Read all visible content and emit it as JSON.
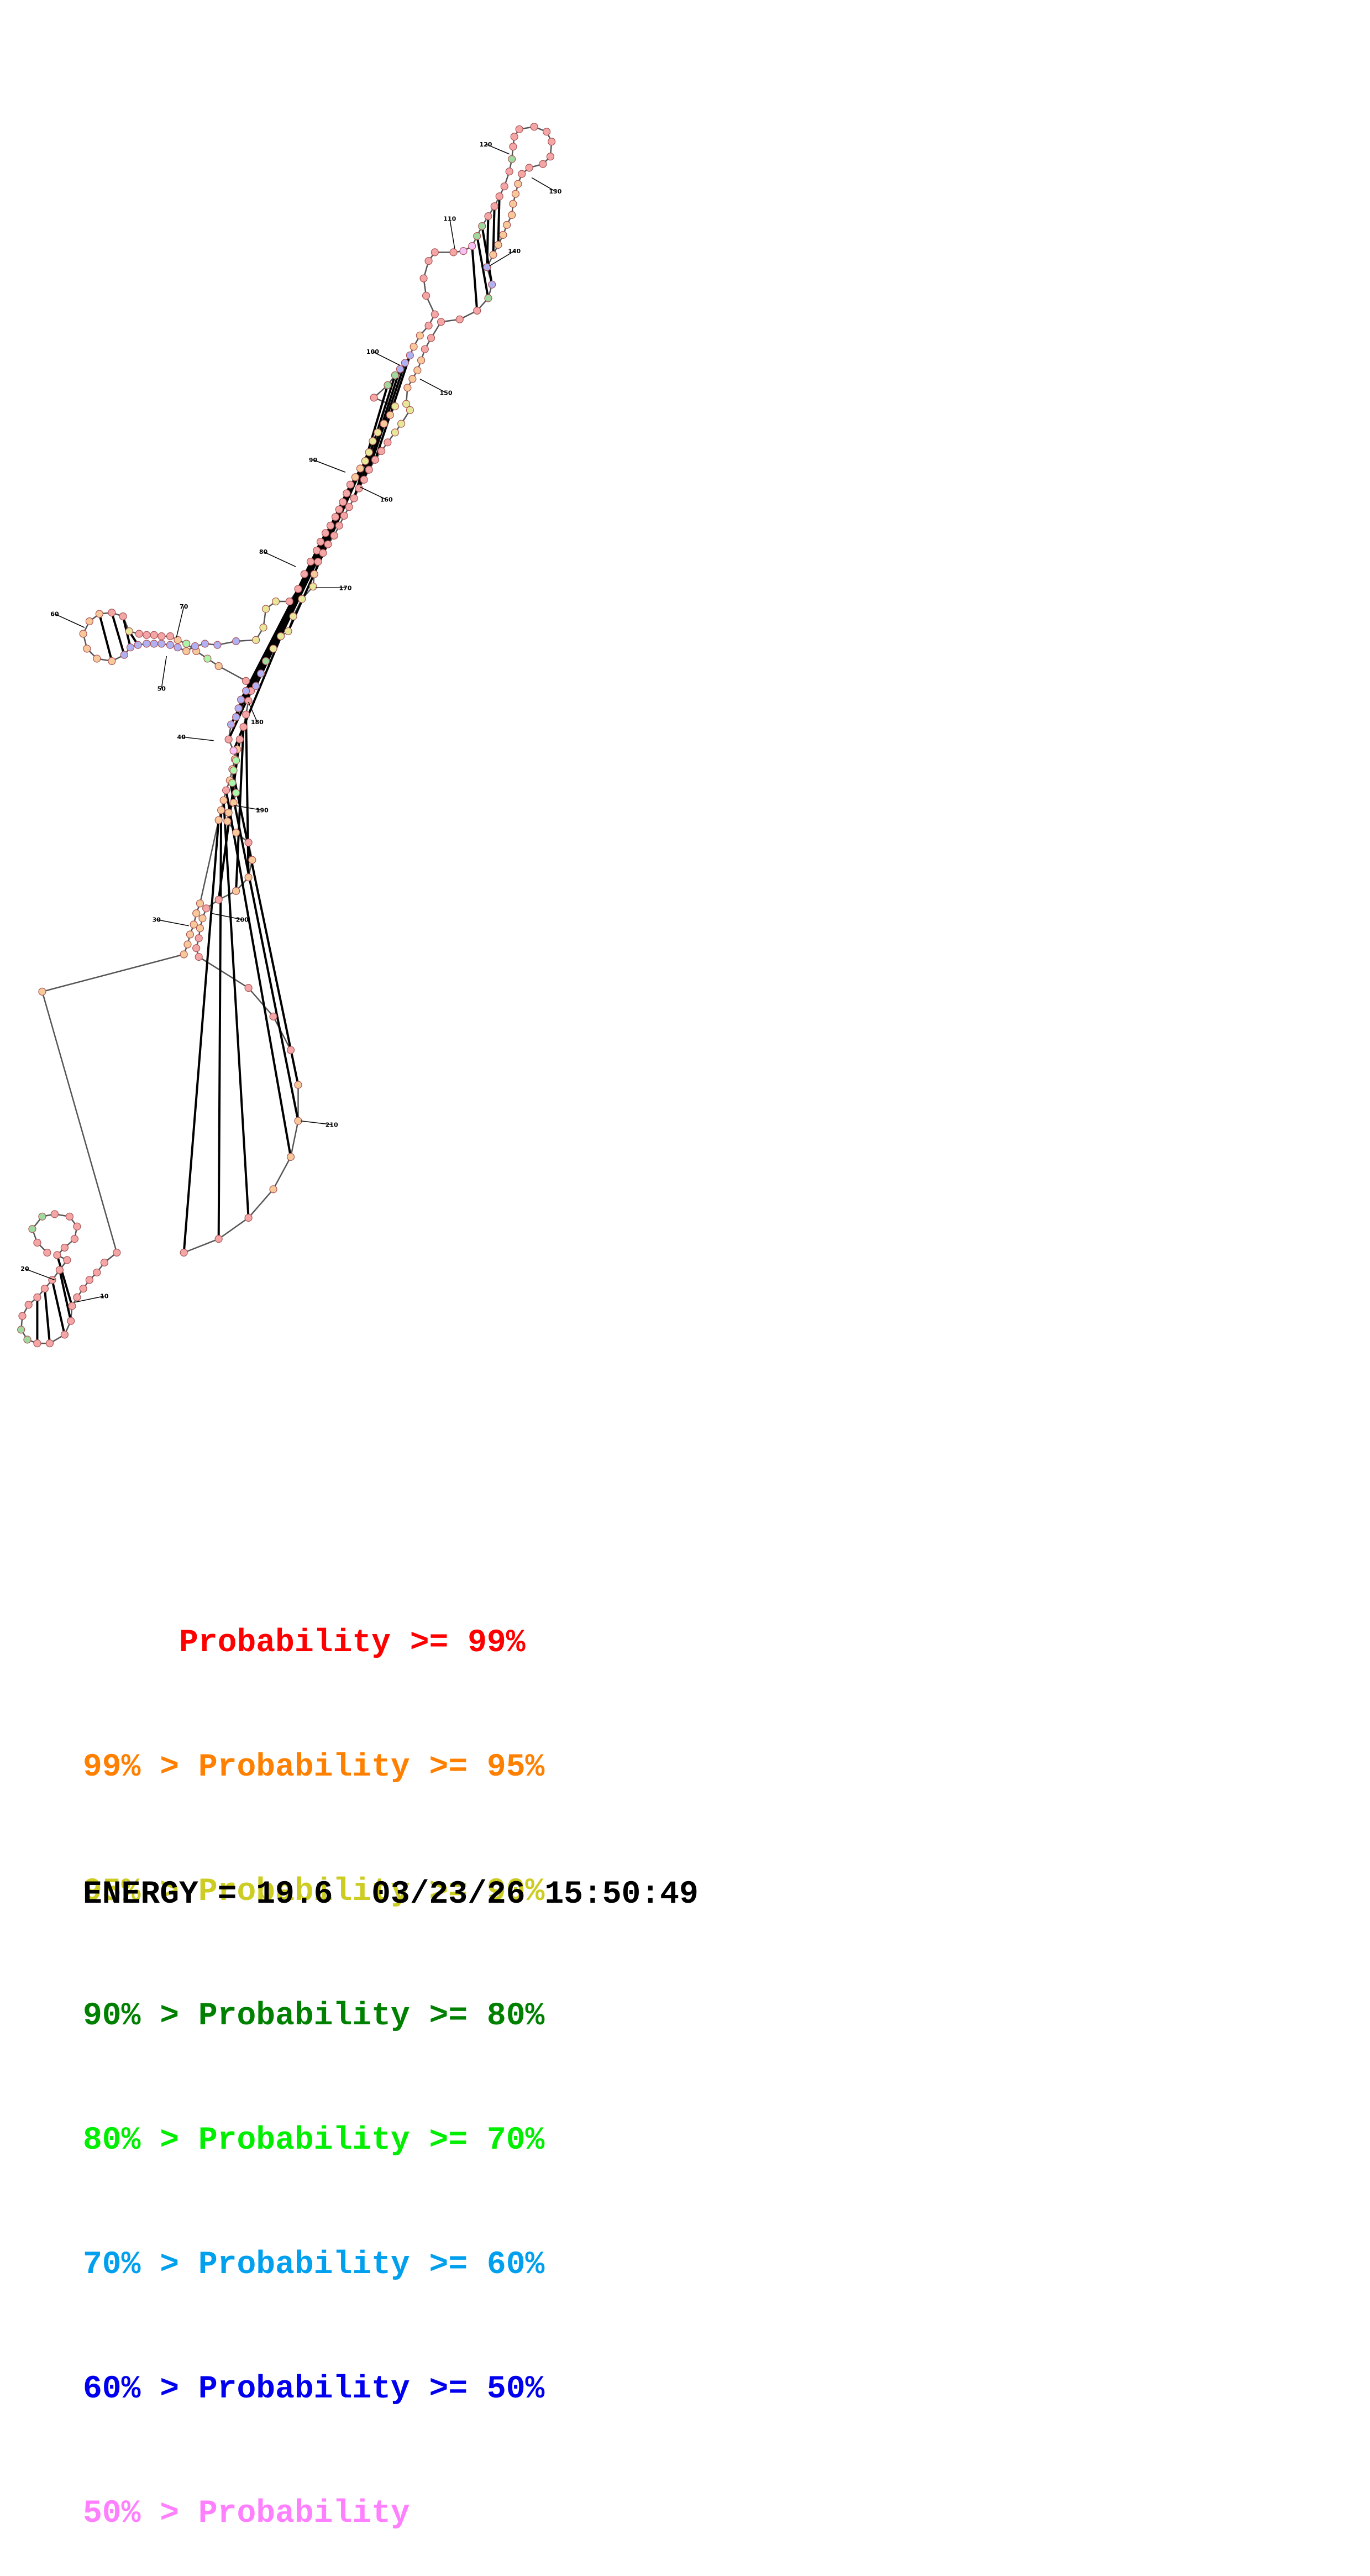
{
  "diagram": {
    "kind": "RNA secondary structure",
    "base_color": "#f4a6a6",
    "position_labels": [
      "10",
      "20",
      "30",
      "40",
      "50",
      "60",
      "70",
      "80",
      "90",
      "100",
      "110",
      "120",
      "130",
      "140",
      "150",
      "160",
      "170",
      "180",
      "190",
      "200",
      "210"
    ]
  },
  "legend": [
    {
      "prefix": "     ",
      "text": "Probability >= 99%",
      "color": "#ff0000"
    },
    {
      "prefix": "99% > ",
      "text": "Probability >= 95%",
      "color": "#ff8000"
    },
    {
      "prefix": "95% > ",
      "text": "Probability >= 90%",
      "color": "#cccc22"
    },
    {
      "prefix": "90% > ",
      "text": "Probability >= 80%",
      "color": "#008000"
    },
    {
      "prefix": "80% > ",
      "text": "Probability >= 70%",
      "color": "#00ee00"
    },
    {
      "prefix": "70% > ",
      "text": "Probability >= 60%",
      "color": "#00a0ee"
    },
    {
      "prefix": "60% > ",
      "text": "Probability >= 50%",
      "color": "#0000ee"
    },
    {
      "prefix": "50% > ",
      "text": "Probability",
      "color": "#ff80ff"
    }
  ],
  "energy_line": "ENERGY = 19.6  03/23/26 15:50:49"
}
